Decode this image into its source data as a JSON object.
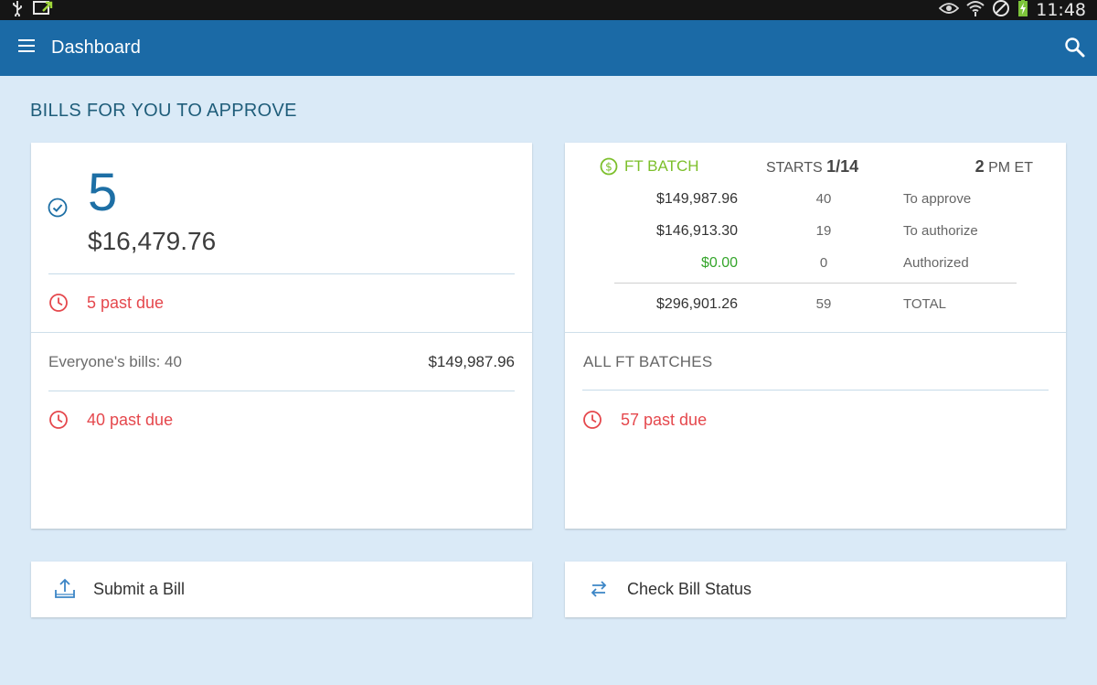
{
  "status_bar": {
    "time": "11:48",
    "icons": [
      "usb-icon",
      "screen-cast-icon",
      "eye-icon",
      "wifi-icon",
      "blocked-icon",
      "battery-charging-icon"
    ]
  },
  "app_bar": {
    "title": "Dashboard",
    "menu_icon": "hamburger-menu-icon",
    "search_icon": "search-icon",
    "color": "#1b6aa6"
  },
  "section": {
    "title": "BILLS FOR YOU TO APPROVE"
  },
  "my_bills": {
    "count": "5",
    "amount": "$16,479.76",
    "past_due": "5 past due",
    "everyone_label": "Everyone's bills: 40",
    "everyone_amount": "$149,987.96",
    "everyone_past_due": "40 past due"
  },
  "ft_batch": {
    "label": "FT BATCH",
    "starts_prefix": "STARTS",
    "starts_date": "1/14",
    "time_value": "2",
    "time_suffix": "PM ET",
    "rows": [
      {
        "amount": "$149,987.96",
        "count": "40",
        "label": "To approve"
      },
      {
        "amount": "$146,913.30",
        "count": "19",
        "label": "To authorize"
      },
      {
        "amount": "$0.00",
        "count": "0",
        "label": "Authorized"
      }
    ],
    "total": {
      "amount": "$296,901.26",
      "count": "59",
      "label": "TOTAL"
    },
    "all_batches_label": "ALL FT BATCHES",
    "all_past_due": "57 past due"
  },
  "actions": {
    "submit_label": "Submit a Bill",
    "status_label": "Check Bill Status"
  },
  "colors": {
    "accent": "#1d6fa5",
    "past_due": "#e5484d",
    "ft_green": "#7cbf2a",
    "authorized_green": "#35a52b",
    "background": "#daeaf7"
  }
}
